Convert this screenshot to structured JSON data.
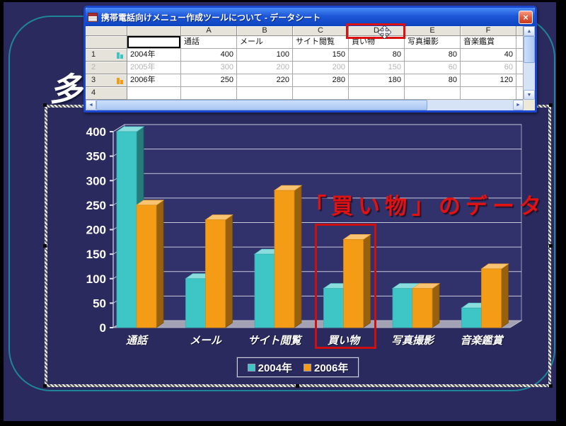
{
  "window": {
    "title": "携帯電話向けメニュー作成ツールについて - データシート",
    "datasheet": {
      "column_letters": [
        "A",
        "B",
        "C",
        "D",
        "E",
        "F"
      ],
      "highlighted_column": "D",
      "category_row": [
        "通話",
        "メール",
        "サイト閲覧",
        "買い物",
        "写真撮影",
        "音楽鑑賞"
      ],
      "rows": [
        {
          "num": "1",
          "label": "2004年",
          "values": [
            "400",
            "100",
            "150",
            "80",
            "80",
            "40"
          ],
          "excluded": false,
          "series_color": "#3ec6c6"
        },
        {
          "num": "2",
          "label": "2005年",
          "values": [
            "300",
            "200",
            "200",
            "150",
            "60",
            "60"
          ],
          "excluded": true,
          "series_color": ""
        },
        {
          "num": "3",
          "label": "2006年",
          "values": [
            "250",
            "220",
            "280",
            "180",
            "80",
            "120"
          ],
          "excluded": false,
          "series_color": "#f49c16"
        },
        {
          "num": "4",
          "label": "",
          "values": [
            "",
            "",
            "",
            "",
            "",
            ""
          ],
          "excluded": false,
          "series_color": ""
        }
      ]
    }
  },
  "icons": {
    "close": "×",
    "scroll_up": "▲",
    "scroll_down": "▼",
    "scroll_left": "◄",
    "scroll_right": "►"
  },
  "slide": {
    "partial_title": "多",
    "annotation_text": "「買い物」のデータ",
    "annotation_color": "#e01212",
    "highlight_color": "#cf0f0f"
  },
  "chart_data": {
    "type": "bar",
    "style": "3d-column",
    "categories": [
      "通話",
      "メール",
      "サイト閲覧",
      "買い物",
      "写真撮影",
      "音楽鑑賞"
    ],
    "series": [
      {
        "name": "2004年",
        "color": "#3ec6c6",
        "values": [
          400,
          100,
          150,
          80,
          80,
          40
        ]
      },
      {
        "name": "2006年",
        "color": "#f49c16",
        "values": [
          250,
          220,
          280,
          180,
          80,
          120
        ]
      }
    ],
    "ylim": [
      0,
      400
    ],
    "yticks": [
      0,
      50,
      100,
      150,
      200,
      250,
      300,
      350,
      400
    ],
    "grid": true,
    "legend_position": "bottom",
    "highlighted_category": "買い物"
  }
}
